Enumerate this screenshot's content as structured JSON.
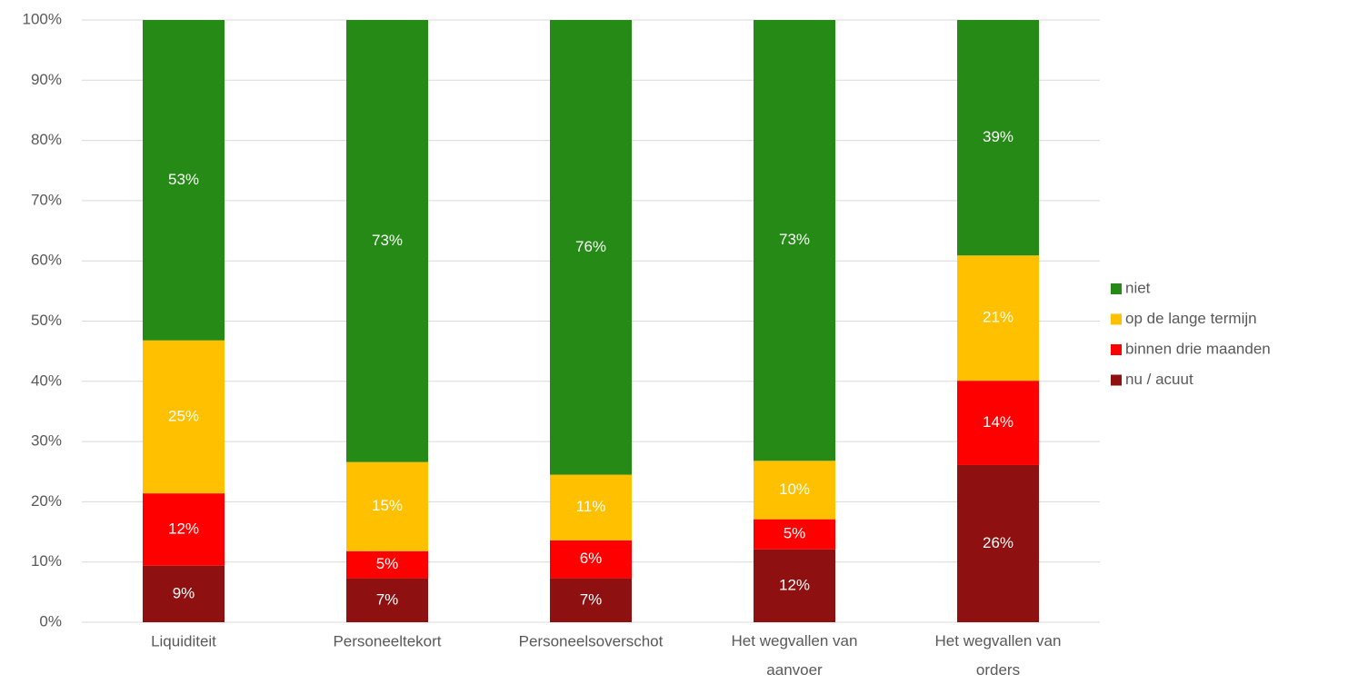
{
  "chart_data": {
    "type": "stacked_bar",
    "categories": [
      "Liquiditeit",
      "Personeeltekort",
      "Personeelsoverschot",
      "Het wegvallen van aanvoer",
      "Het wegvallen van orders"
    ],
    "series": [
      {
        "name": "nu / acuut",
        "color": "#8e1010",
        "values": [
          9.4,
          7.3,
          7.3,
          12.1,
          26.1
        ],
        "value_labels": [
          "9%",
          "7%",
          "7%",
          "12%",
          "26%"
        ]
      },
      {
        "name": "binnen drie maanden",
        "color": "#ff0000",
        "values": [
          12.0,
          4.5,
          6.3,
          5.0,
          14.0
        ],
        "value_labels": [
          "12%",
          "5%",
          "6%",
          "5%",
          "14%"
        ]
      },
      {
        "name": "op de lange termijn",
        "color": "#ffc000",
        "values": [
          25.4,
          14.8,
          10.9,
          9.7,
          20.8
        ],
        "value_labels": [
          "25%",
          "15%",
          "11%",
          "10%",
          "21%"
        ]
      },
      {
        "name": "niet",
        "color": "#258a16",
        "values": [
          53.2,
          73.4,
          75.5,
          73.2,
          39.1
        ],
        "value_labels": [
          "53%",
          "73%",
          "76%",
          "73%",
          "39%"
        ]
      }
    ],
    "ylim": [
      0,
      100
    ],
    "yticks": [
      {
        "value": 0,
        "label": "0%"
      },
      {
        "value": 10,
        "label": "10%"
      },
      {
        "value": 20,
        "label": "20%"
      },
      {
        "value": 30,
        "label": "30%"
      },
      {
        "value": 40,
        "label": "40%"
      },
      {
        "value": 50,
        "label": "50%"
      },
      {
        "value": 60,
        "label": "60%"
      },
      {
        "value": 70,
        "label": "70%"
      },
      {
        "value": 80,
        "label": "80%"
      },
      {
        "value": 90,
        "label": "90%"
      },
      {
        "value": 100,
        "label": "100%"
      }
    ],
    "grid": true,
    "legend": "right"
  }
}
